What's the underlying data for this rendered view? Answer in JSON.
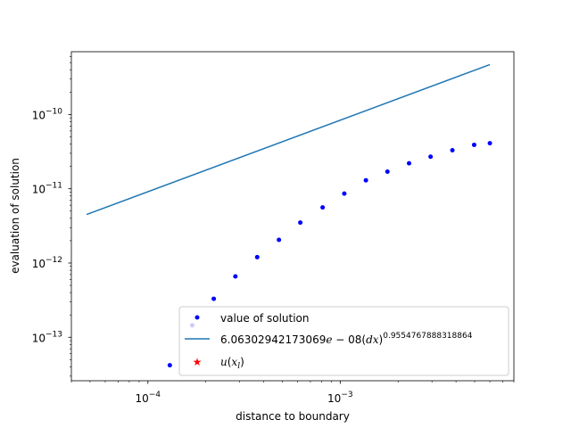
{
  "chart_data": {
    "type": "line",
    "xscale": "log",
    "yscale": "log",
    "xlim": [
      4e-05,
      0.008
    ],
    "ylim": [
      2.6e-14,
      7e-10
    ],
    "xlabel": "distance to boundary",
    "ylabel": "evaluation of solution",
    "x_tick_labels": [
      {
        "value": 0.0001,
        "base": "10",
        "exp": "−4"
      },
      {
        "value": 0.001,
        "base": "10",
        "exp": "−3"
      }
    ],
    "y_tick_labels": [
      {
        "value": 1e-13,
        "base": "10",
        "exp": "−13"
      },
      {
        "value": 1e-12,
        "base": "10",
        "exp": "−12"
      },
      {
        "value": 1e-11,
        "base": "10",
        "exp": "−11"
      },
      {
        "value": 1e-10,
        "base": "10",
        "exp": "−10"
      }
    ],
    "series": [
      {
        "name": "value of solution",
        "kind": "scatter",
        "color": "#0000ff",
        "x": [
          0.00013,
          0.00017,
          0.00022,
          0.000285,
          0.00037,
          0.00048,
          0.00062,
          0.00081,
          0.00105,
          0.00136,
          0.00176,
          0.00228,
          0.00295,
          0.00383,
          0.00497,
          0.006
        ],
        "y": [
          4.2e-14,
          1.45e-13,
          3.3e-13,
          6.6e-13,
          1.2e-12,
          2.05e-12,
          3.5e-12,
          5.6e-12,
          8.6e-12,
          1.3e-11,
          1.7e-11,
          2.2e-11,
          2.7e-11,
          3.3e-11,
          3.9e-11,
          4.1e-11
        ]
      },
      {
        "name_parts": {
          "coef": "6.06302942173069",
          "e": "e",
          "exp_rest": " − 08(",
          "var": "dx",
          "close": ")",
          "power": "0.9554767888318864"
        },
        "kind": "line",
        "color": "#1f77b4",
        "x": [
          4.8e-05,
          0.006
        ],
        "y": [
          4.5e-12,
          4.7e-10
        ]
      },
      {
        "name_parts": {
          "u": "u",
          "open": "(",
          "x": "x",
          "sub": "l",
          "close": ")"
        },
        "kind": "marker",
        "color": "#ff0000",
        "x": [],
        "y": []
      }
    ],
    "legend": {
      "position": "lower-right"
    }
  }
}
